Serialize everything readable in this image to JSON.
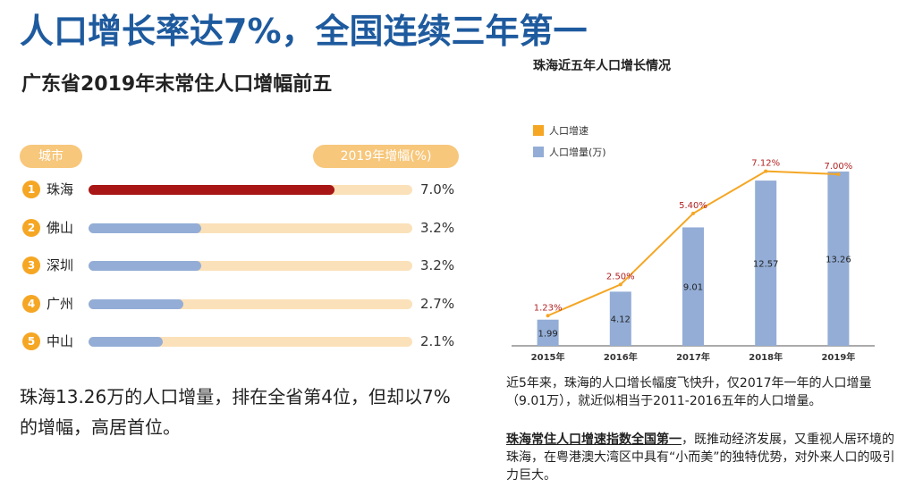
{
  "main_title": "人口增长率达7%，全国连续三年第一",
  "left_panel": {
    "title": "广东省2019年末常住人口增幅前五",
    "header_city": "城市",
    "header_growth": "2019年增幅(%)",
    "rows": [
      {
        "rank": "1",
        "city": "珠海",
        "value": 7.0,
        "label": "7.0%"
      },
      {
        "rank": "2",
        "city": "佛山",
        "value": 3.2,
        "label": "3.2%"
      },
      {
        "rank": "3",
        "city": "深圳",
        "value": 3.2,
        "label": "3.2%"
      },
      {
        "rank": "4",
        "city": "广州",
        "value": 2.7,
        "label": "2.7%"
      },
      {
        "rank": "5",
        "city": "中山",
        "value": 2.1,
        "label": "2.1%"
      }
    ],
    "note": "珠海13.26万的人口增量，排在全省第4位，但却以7%的增幅，高居首位。"
  },
  "colors": {
    "title_blue": "#1e5a9e",
    "top_bar": "#a81616",
    "bar_blue": "#93add6",
    "bar_track": "#fbe1b9",
    "pill": "#f7c77c",
    "rank_circle": "#f5a623",
    "line_orange": "#f5a623",
    "rate_label": "#b22222"
  },
  "chart_data": {
    "type": "bar",
    "title": "珠海近五年人口增长情况",
    "categories": [
      "2015年",
      "2016年",
      "2017年",
      "2018年",
      "2019年"
    ],
    "series": [
      {
        "name": "人口增量(万)",
        "kind": "bar",
        "values": [
          1.99,
          4.12,
          9.01,
          12.57,
          13.26
        ],
        "labels": [
          "1.99",
          "4.12",
          "9.01",
          "12.57",
          "13.26"
        ]
      },
      {
        "name": "人口增速",
        "kind": "line",
        "values": [
          1.23,
          2.5,
          5.4,
          7.12,
          7.0
        ],
        "labels": [
          "1.23%",
          "2.50%",
          "5.40%",
          "7.12%",
          "7.00%"
        ]
      }
    ],
    "legend": [
      "人口增速",
      "人口增量(万)"
    ],
    "ylim_bar": [
      0,
      13.8
    ],
    "ylim_line": [
      0,
      7.4
    ]
  },
  "right_text": {
    "para1": "近5年来，珠海的人口增长幅度飞快升，仅2017年一年的人口增量（9.01万），就近似相当于2011-2016五年的人口增量。",
    "para2_highlight": "珠海常住人口增速指数全国第一",
    "para2_rest": "，既推动经济发展，又重视人居环境的珠海，在粤港澳大湾区中具有“小而美”的独特优势，对外来人口的吸引力巨大。"
  }
}
